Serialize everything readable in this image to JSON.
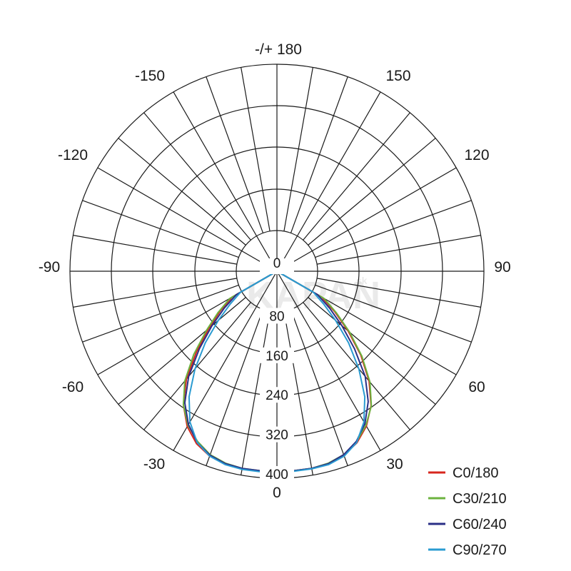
{
  "chart_data": {
    "type": "polar",
    "title": "",
    "angle_labels": [
      {
        "angle": 180,
        "text": "-/+ 180"
      },
      {
        "angle": 150,
        "text": "150"
      },
      {
        "angle": -150,
        "text": "-150"
      },
      {
        "angle": 120,
        "text": "120"
      },
      {
        "angle": -120,
        "text": "-120"
      },
      {
        "angle": 90,
        "text": "90"
      },
      {
        "angle": -90,
        "text": "-90"
      },
      {
        "angle": 60,
        "text": "60"
      },
      {
        "angle": -60,
        "text": "-60"
      },
      {
        "angle": 30,
        "text": "30"
      },
      {
        "angle": -30,
        "text": "-30"
      },
      {
        "angle": 0,
        "text": "0"
      }
    ],
    "radial_labels": [
      "0",
      "80",
      "160",
      "240",
      "320",
      "400"
    ],
    "rlim": [
      0,
      400
    ],
    "grid": true,
    "legend_position": "bottom-right",
    "series": [
      {
        "name": "C0/180",
        "color": "#d7261e",
        "angles": [
          -60,
          -55,
          -50,
          -45,
          -40,
          -35,
          -30,
          -25,
          -20,
          -15,
          -10,
          -5,
          0,
          5,
          10,
          15,
          20,
          25,
          30,
          35,
          40,
          45,
          50,
          55,
          60
        ],
        "values": [
          105,
          140,
          180,
          230,
          285,
          330,
          363,
          385,
          398,
          404,
          406,
          406,
          405,
          405,
          405,
          403,
          396,
          383,
          362,
          332,
          290,
          240,
          188,
          143,
          105
        ]
      },
      {
        "name": "C30/210",
        "color": "#6cb33f",
        "angles": [
          -60,
          -55,
          -50,
          -45,
          -40,
          -35,
          -30,
          -25,
          -20,
          -15,
          -10,
          -5,
          0,
          5,
          10,
          15,
          20,
          25,
          30,
          35,
          40,
          45,
          50,
          55,
          60
        ],
        "values": [
          110,
          145,
          186,
          238,
          290,
          330,
          360,
          380,
          395,
          402,
          405,
          405,
          405,
          405,
          405,
          402,
          395,
          381,
          360,
          333,
          293,
          243,
          192,
          147,
          110
        ]
      },
      {
        "name": "C60/240",
        "color": "#2a2f86",
        "angles": [
          -60,
          -55,
          -50,
          -45,
          -40,
          -35,
          -30,
          -25,
          -20,
          -15,
          -10,
          -5,
          0,
          5,
          10,
          15,
          20,
          25,
          30,
          35,
          40,
          45,
          50,
          55,
          60
        ],
        "values": [
          95,
          130,
          172,
          222,
          278,
          325,
          358,
          382,
          396,
          403,
          405,
          405,
          405,
          405,
          405,
          403,
          395,
          380,
          356,
          322,
          278,
          222,
          172,
          130,
          95
        ]
      },
      {
        "name": "C90/270",
        "color": "#2a9bd1",
        "angles": [
          -60,
          -55,
          -50,
          -45,
          -40,
          -35,
          -30,
          -25,
          -20,
          -15,
          -10,
          -5,
          0,
          5,
          10,
          15,
          20,
          25,
          30,
          35,
          40,
          45,
          50,
          55,
          60
        ],
        "values": [
          85,
          115,
          155,
          205,
          258,
          310,
          352,
          382,
          398,
          405,
          407,
          407,
          406,
          406,
          406,
          405,
          398,
          382,
          352,
          310,
          258,
          205,
          155,
          115,
          85
        ]
      }
    ]
  },
  "watermark": {
    "text": "KAPAN",
    "suffix": ".sk"
  }
}
